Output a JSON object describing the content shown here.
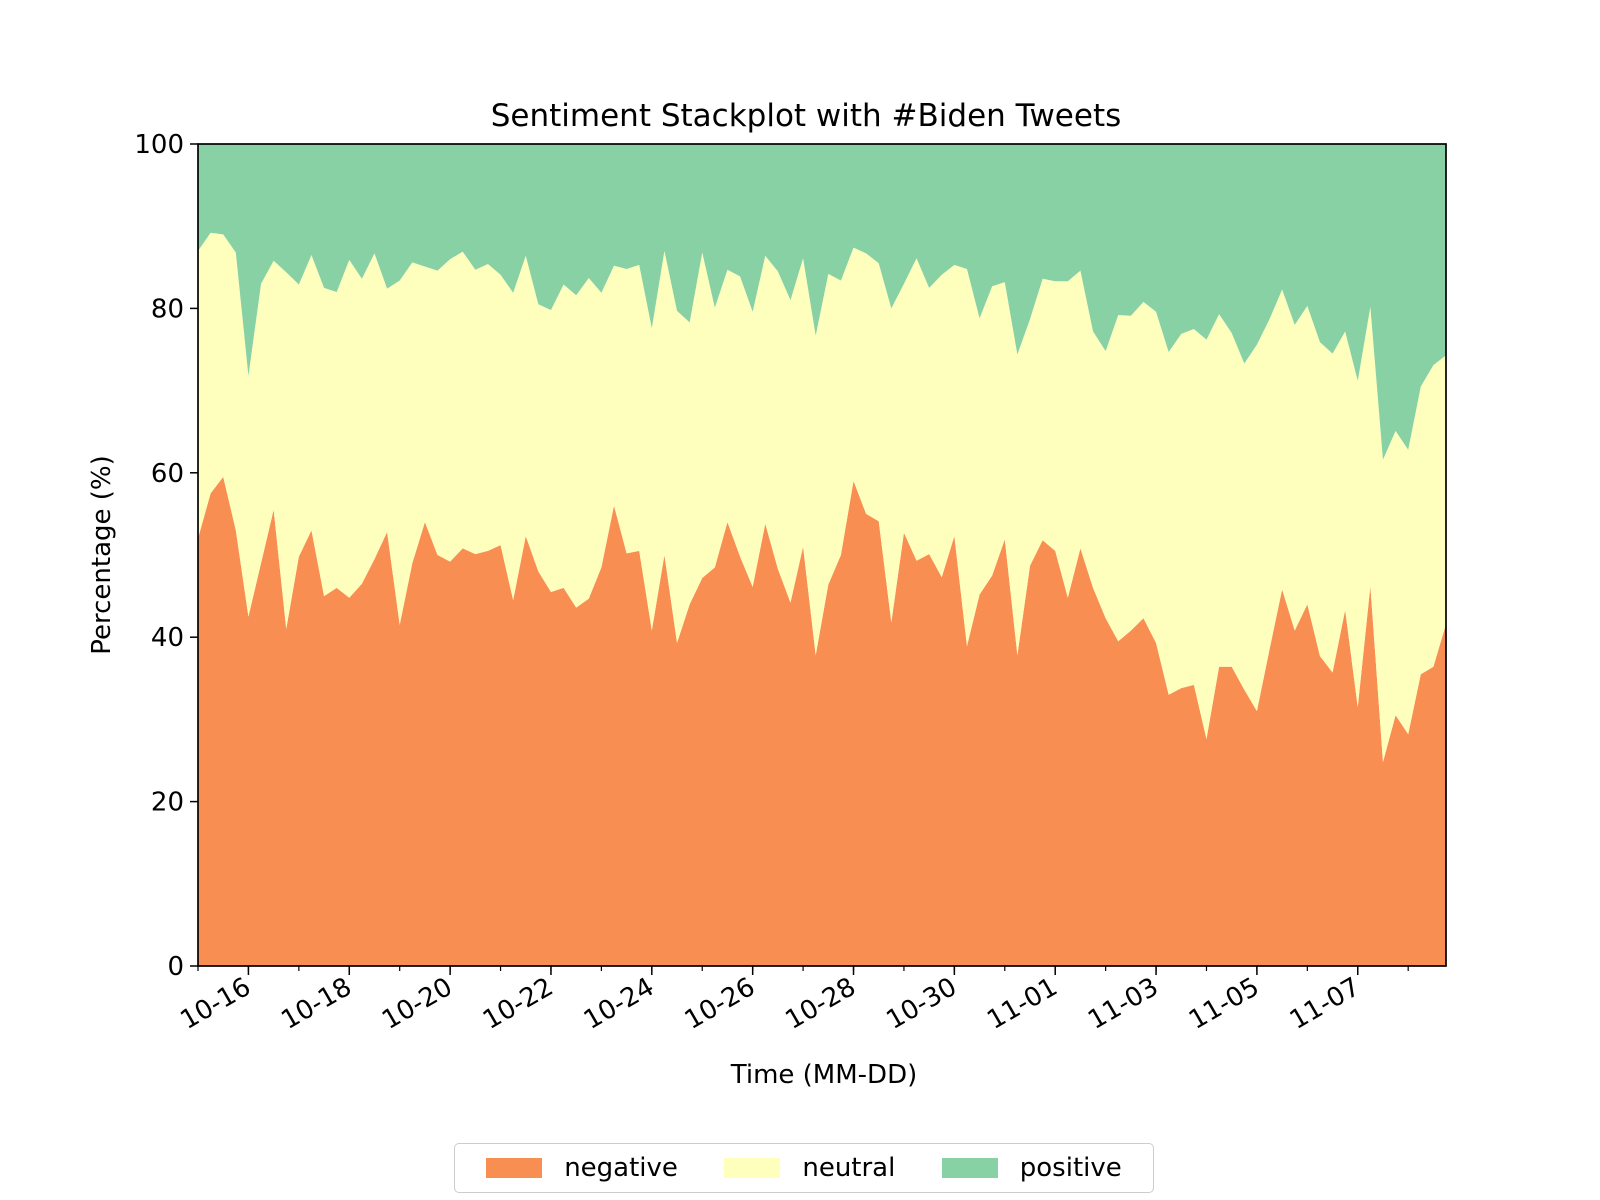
{
  "chart_data": {
    "type": "area",
    "stacked": true,
    "title": "Sentiment Stackplot with #Biden Tweets",
    "xlabel": "Time (MM-DD)",
    "ylabel": "Percentage (%)",
    "ylim": [
      0,
      100
    ],
    "yticks": [
      0,
      20,
      40,
      60,
      80,
      100
    ],
    "xlim": [
      "2020-10-15T00:00",
      "2020-11-08T18:00"
    ],
    "xticks": [
      {
        "date": "2020-10-16T00:00",
        "label": "10-16"
      },
      {
        "date": "2020-10-18T00:00",
        "label": "10-18"
      },
      {
        "date": "2020-10-20T00:00",
        "label": "10-20"
      },
      {
        "date": "2020-10-22T00:00",
        "label": "10-22"
      },
      {
        "date": "2020-10-24T00:00",
        "label": "10-24"
      },
      {
        "date": "2020-10-26T00:00",
        "label": "10-26"
      },
      {
        "date": "2020-10-28T00:00",
        "label": "10-28"
      },
      {
        "date": "2020-10-30T00:00",
        "label": "10-30"
      },
      {
        "date": "2020-11-01T00:00",
        "label": "11-01"
      },
      {
        "date": "2020-11-03T00:00",
        "label": "11-03"
      },
      {
        "date": "2020-11-05T00:00",
        "label": "11-05"
      },
      {
        "date": "2020-11-07T00:00",
        "label": "11-07"
      }
    ],
    "grid": false,
    "legend": {
      "position": "bottom-center",
      "columns": 3
    },
    "series": [
      {
        "name": "negative",
        "color": "#f98e52",
        "values": [
          52,
          57.5,
          59.5,
          53,
          42.5,
          49,
          55.5,
          41,
          49.8,
          53,
          45,
          46,
          44.8,
          46.5,
          49.5,
          52.8,
          41.5,
          49,
          54,
          50,
          49.2,
          50.8,
          50.1,
          50.5,
          51.2,
          44.5,
          52.3,
          48,
          45.5,
          46,
          43.6,
          44.7,
          48.5,
          56,
          50.2,
          50.5,
          40.8,
          50,
          39.3,
          44,
          47.2,
          48.5,
          54,
          49.8,
          46.1,
          53.8,
          48.3,
          44.2,
          51,
          37.8,
          46.4,
          50,
          59,
          55,
          54.1,
          41.8,
          52.7,
          49.3,
          50.1,
          47.3,
          52.3,
          38.9,
          45.2,
          47.5,
          51.9,
          37.8,
          48.7,
          51.8,
          50.5,
          44.8,
          50.8,
          46,
          42.3,
          39.5,
          40.8,
          42.3,
          39.3,
          33,
          33.8,
          34.2,
          27.6,
          36.4,
          36.4,
          33.6,
          31,
          38.5,
          45.8,
          40.8,
          44,
          37.7,
          35.7,
          43.3,
          31.5,
          46.2,
          24.8,
          30.5,
          28.2,
          35.5,
          36.4,
          41.6
        ]
      },
      {
        "name": "neutral",
        "color": "#fefebd",
        "values": [
          35,
          31.7,
          29.5,
          33.8,
          29.3,
          34,
          30.3,
          43.4,
          33.1,
          33.5,
          37.5,
          36,
          41.1,
          37.1,
          37.2,
          29.6,
          41.9,
          36.6,
          31.1,
          34.6,
          36.8,
          36.1,
          34.6,
          34.9,
          32.9,
          37.4,
          34.1,
          32.5,
          34.3,
          36.9,
          38,
          39,
          33.4,
          29.2,
          34.6,
          34.8,
          36.8,
          37,
          40.4,
          34.3,
          39.6,
          31.6,
          30.7,
          34.1,
          33.5,
          32.6,
          36.2,
          36.8,
          35.1,
          38.9,
          37.8,
          33.4,
          28.4,
          31.7,
          31.4,
          38.2,
          30.3,
          36.8,
          32.4,
          36.8,
          33,
          45.9,
          33.6,
          35.2,
          31.3,
          36.6,
          30,
          31.8,
          32.8,
          38.5,
          33.8,
          31.2,
          32.5,
          39.7,
          38.3,
          38.5,
          40.3,
          41.7,
          43.1,
          43.3,
          48.6,
          42.9,
          40.6,
          39.7,
          44.6,
          40.2,
          36.5,
          37.2,
          36.3,
          38.2,
          38.8,
          33.9,
          39.7,
          34,
          36.8,
          34.6,
          34.6,
          35,
          36.7,
          32.7
        ]
      },
      {
        "name": "positive",
        "color": "#88d1a4",
        "values": [
          13,
          10.8,
          11,
          13.2,
          28.2,
          17,
          14.2,
          15.6,
          17.1,
          13.5,
          17.5,
          18,
          14.1,
          16.4,
          13.3,
          17.6,
          16.6,
          14.4,
          14.9,
          15.4,
          14,
          13.1,
          15.3,
          14.6,
          15.9,
          18.1,
          13.6,
          19.5,
          20.2,
          17.1,
          18.4,
          16.3,
          18.1,
          14.8,
          15.2,
          14.7,
          22.4,
          13,
          20.3,
          21.7,
          13.2,
          19.9,
          15.3,
          16.1,
          20.4,
          13.6,
          15.5,
          19,
          13.9,
          23.3,
          15.8,
          16.6,
          12.6,
          13.3,
          14.5,
          20,
          17,
          13.9,
          17.5,
          15.9,
          14.7,
          15.2,
          21.2,
          17.3,
          16.8,
          25.6,
          21.3,
          16.4,
          16.7,
          16.7,
          15.4,
          22.8,
          25.2,
          20.8,
          20.9,
          19.2,
          20.4,
          25.3,
          23.1,
          22.5,
          23.8,
          20.7,
          23,
          26.7,
          24.4,
          21.3,
          17.7,
          22,
          19.7,
          24.1,
          25.5,
          22.8,
          28.8,
          19.8,
          38.4,
          34.9,
          37.2,
          29.5,
          26.9,
          25.7
        ]
      }
    ]
  }
}
